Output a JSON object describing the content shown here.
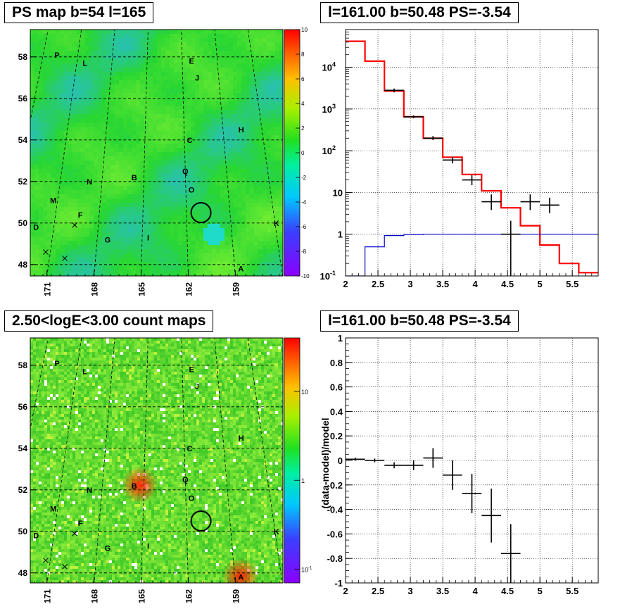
{
  "titles": {
    "ps_map": "PS map b=54 l=165",
    "spectrum": "l=161.00 b=50.48 PS=-3.54",
    "count_map": "2.50<logE<3.00 count maps",
    "residual": "l=161.00 b=50.48 PS=-3.54"
  },
  "colors": {
    "model_line": "#ff0000",
    "background_line": "#0000cc",
    "data_points": "#000000",
    "map_background": "#2ee23a"
  },
  "chart_data": [
    {
      "id": "ps_map",
      "type": "heatmap",
      "title": "PS map b=54 l=165",
      "x_ticks": [
        "171",
        "168",
        "165",
        "162",
        "159"
      ],
      "y_ticks": [
        "48",
        "50",
        "52",
        "54",
        "56",
        "58"
      ],
      "colorbar_ticks": [
        "10",
        "8",
        "6",
        "4",
        "2",
        "0",
        "-2",
        "-4",
        "-6",
        "-8",
        "-10"
      ],
      "colorbar_range": [
        -10,
        10
      ],
      "labels": [
        {
          "text": "P",
          "l": 172.8,
          "b": 58.1
        },
        {
          "text": "L",
          "l": 170.3,
          "b": 57.7
        },
        {
          "text": "E",
          "l": 161.2,
          "b": 57.8
        },
        {
          "text": "J",
          "l": 160.8,
          "b": 57.0
        },
        {
          "text": "H",
          "l": 157.6,
          "b": 54.5
        },
        {
          "text": "C",
          "l": 161.6,
          "b": 54.0
        },
        {
          "text": "B",
          "l": 165.7,
          "b": 52.2
        },
        {
          "text": "Q",
          "l": 162.0,
          "b": 52.5
        },
        {
          "text": "O",
          "l": 161.6,
          "b": 51.6
        },
        {
          "text": "N",
          "l": 168.9,
          "b": 52.0
        },
        {
          "text": "M",
          "l": 171.3,
          "b": 51.1
        },
        {
          "text": "F",
          "l": 169.3,
          "b": 50.4
        },
        {
          "text": "D",
          "l": 172.2,
          "b": 49.8
        },
        {
          "text": "G",
          "l": 167.3,
          "b": 49.2
        },
        {
          "text": "I",
          "l": 164.6,
          "b": 49.3
        },
        {
          "text": "K",
          "l": 155.9,
          "b": 50.0
        },
        {
          "text": "A",
          "l": 158.6,
          "b": 47.8
        }
      ],
      "crosses": [
        {
          "l": 169.6,
          "b": 49.9
        },
        {
          "l": 171.3,
          "b": 48.6
        },
        {
          "l": 170.0,
          "b": 48.3
        }
      ],
      "circle": {
        "l": 161.0,
        "b": 50.5
      }
    },
    {
      "id": "spectrum",
      "type": "line",
      "title": "l=161.00 b=50.48 PS=-3.54",
      "xlim": [
        2,
        5.9
      ],
      "ylim": [
        0.1,
        80000
      ],
      "y_scale": "log",
      "x_ticks": [
        "2",
        "2.5",
        "3",
        "3.5",
        "4",
        "4.5",
        "5",
        "5.5"
      ],
      "y_ticks": [
        {
          "value": 0.1,
          "label": "10",
          "sup": "-1"
        },
        {
          "value": 1,
          "label": "1",
          "sup": ""
        },
        {
          "value": 10,
          "label": "10",
          "sup": ""
        },
        {
          "value": 100,
          "label": "10",
          "sup": "2"
        },
        {
          "value": 1000,
          "label": "10",
          "sup": "3"
        },
        {
          "value": 10000,
          "label": "10",
          "sup": "4"
        }
      ],
      "grid": true,
      "series": [
        {
          "role": "model",
          "color": "#ff0000",
          "edges": [
            2.0,
            2.3,
            2.6,
            2.9,
            3.2,
            3.5,
            3.8,
            4.1,
            4.4,
            4.7,
            5.0,
            5.3,
            5.6,
            5.9
          ],
          "values": [
            42000,
            14000,
            2700,
            650,
            200,
            70,
            27,
            11,
            4.3,
            1.6,
            0.55,
            0.2,
            0.12
          ]
        },
        {
          "role": "background",
          "color": "#0000cc",
          "edges": [
            2.0,
            2.3,
            2.6,
            2.9,
            3.2,
            5.9
          ],
          "values": [
            0.1,
            0.5,
            0.93,
            0.98,
            1.0
          ]
        },
        {
          "role": "data",
          "color": "#000000",
          "points": [
            {
              "x": 2.75,
              "y": 2800,
              "xerr": 0.15,
              "ylo": 2500,
              "yhi": 3100
            },
            {
              "x": 3.05,
              "y": 650,
              "xerr": 0.15,
              "ylo": 600,
              "yhi": 700
            },
            {
              "x": 3.35,
              "y": 200,
              "xerr": 0.15,
              "ylo": 180,
              "yhi": 225
            },
            {
              "x": 3.65,
              "y": 60,
              "xerr": 0.15,
              "ylo": 50,
              "yhi": 72
            },
            {
              "x": 3.95,
              "y": 20,
              "xerr": 0.15,
              "ylo": 15,
              "yhi": 26
            },
            {
              "x": 4.25,
              "y": 6,
              "xerr": 0.15,
              "ylo": 3.8,
              "yhi": 9
            },
            {
              "x": 4.55,
              "y": 1,
              "xerr": 0.15,
              "ylo": 0.1,
              "yhi": 2.1
            },
            {
              "x": 4.85,
              "y": 6,
              "xerr": 0.15,
              "ylo": 3.8,
              "yhi": 9
            },
            {
              "x": 5.15,
              "y": 5,
              "xerr": 0.15,
              "ylo": 3.2,
              "yhi": 7.5
            }
          ]
        }
      ]
    },
    {
      "id": "count_map",
      "type": "heatmap",
      "title": "2.50<logE<3.00 count maps",
      "x_ticks": [
        "171",
        "168",
        "165",
        "162",
        "159"
      ],
      "y_ticks": [
        "48",
        "50",
        "52",
        "54",
        "56",
        "58"
      ],
      "colorbar_ticks": [
        {
          "value": 10,
          "label": "10",
          "sup": ""
        },
        {
          "value": 1,
          "label": "1",
          "sup": ""
        },
        {
          "value": 0.1,
          "label": "10",
          "sup": "-1"
        }
      ],
      "colorbar_range": [
        0.07,
        40
      ],
      "colorbar_scale": "log",
      "sources": [
        {
          "l": 165.4,
          "b": 52.3
        },
        {
          "l": 158.7,
          "b": 47.9
        }
      ],
      "circle": {
        "l": 161.0,
        "b": 50.5
      }
    },
    {
      "id": "residual",
      "type": "scatter",
      "title": "l=161.00 b=50.48 PS=-3.54",
      "ylabel": "(data-model)/model",
      "xlim": [
        2,
        5.9
      ],
      "ylim": [
        -1,
        1
      ],
      "x_ticks": [
        "2",
        "2.5",
        "3",
        "3.5",
        "4",
        "4.5",
        "5",
        "5.5"
      ],
      "y_ticks": [
        "-1",
        "-0.8",
        "-0.6",
        "-0.4",
        "-0.2",
        "0",
        "0.2",
        "0.4",
        "0.6",
        "0.8",
        "1"
      ],
      "grid": true,
      "points": [
        {
          "x": 2.15,
          "y": 0.01,
          "xerr": 0.15,
          "yerr": 0.012
        },
        {
          "x": 2.45,
          "y": 0.0,
          "xerr": 0.15,
          "yerr": 0.015
        },
        {
          "x": 2.75,
          "y": -0.04,
          "xerr": 0.15,
          "yerr": 0.025
        },
        {
          "x": 3.05,
          "y": -0.04,
          "xerr": 0.15,
          "yerr": 0.04
        },
        {
          "x": 3.35,
          "y": 0.02,
          "xerr": 0.15,
          "yerr": 0.08
        },
        {
          "x": 3.65,
          "y": -0.12,
          "xerr": 0.15,
          "yerr": 0.12
        },
        {
          "x": 3.95,
          "y": -0.27,
          "xerr": 0.15,
          "yerr": 0.16
        },
        {
          "x": 4.25,
          "y": -0.45,
          "xerr": 0.15,
          "yerr": 0.22
        },
        {
          "x": 4.55,
          "y": -0.76,
          "xerr": 0.15,
          "yerr": 0.24
        }
      ]
    }
  ]
}
